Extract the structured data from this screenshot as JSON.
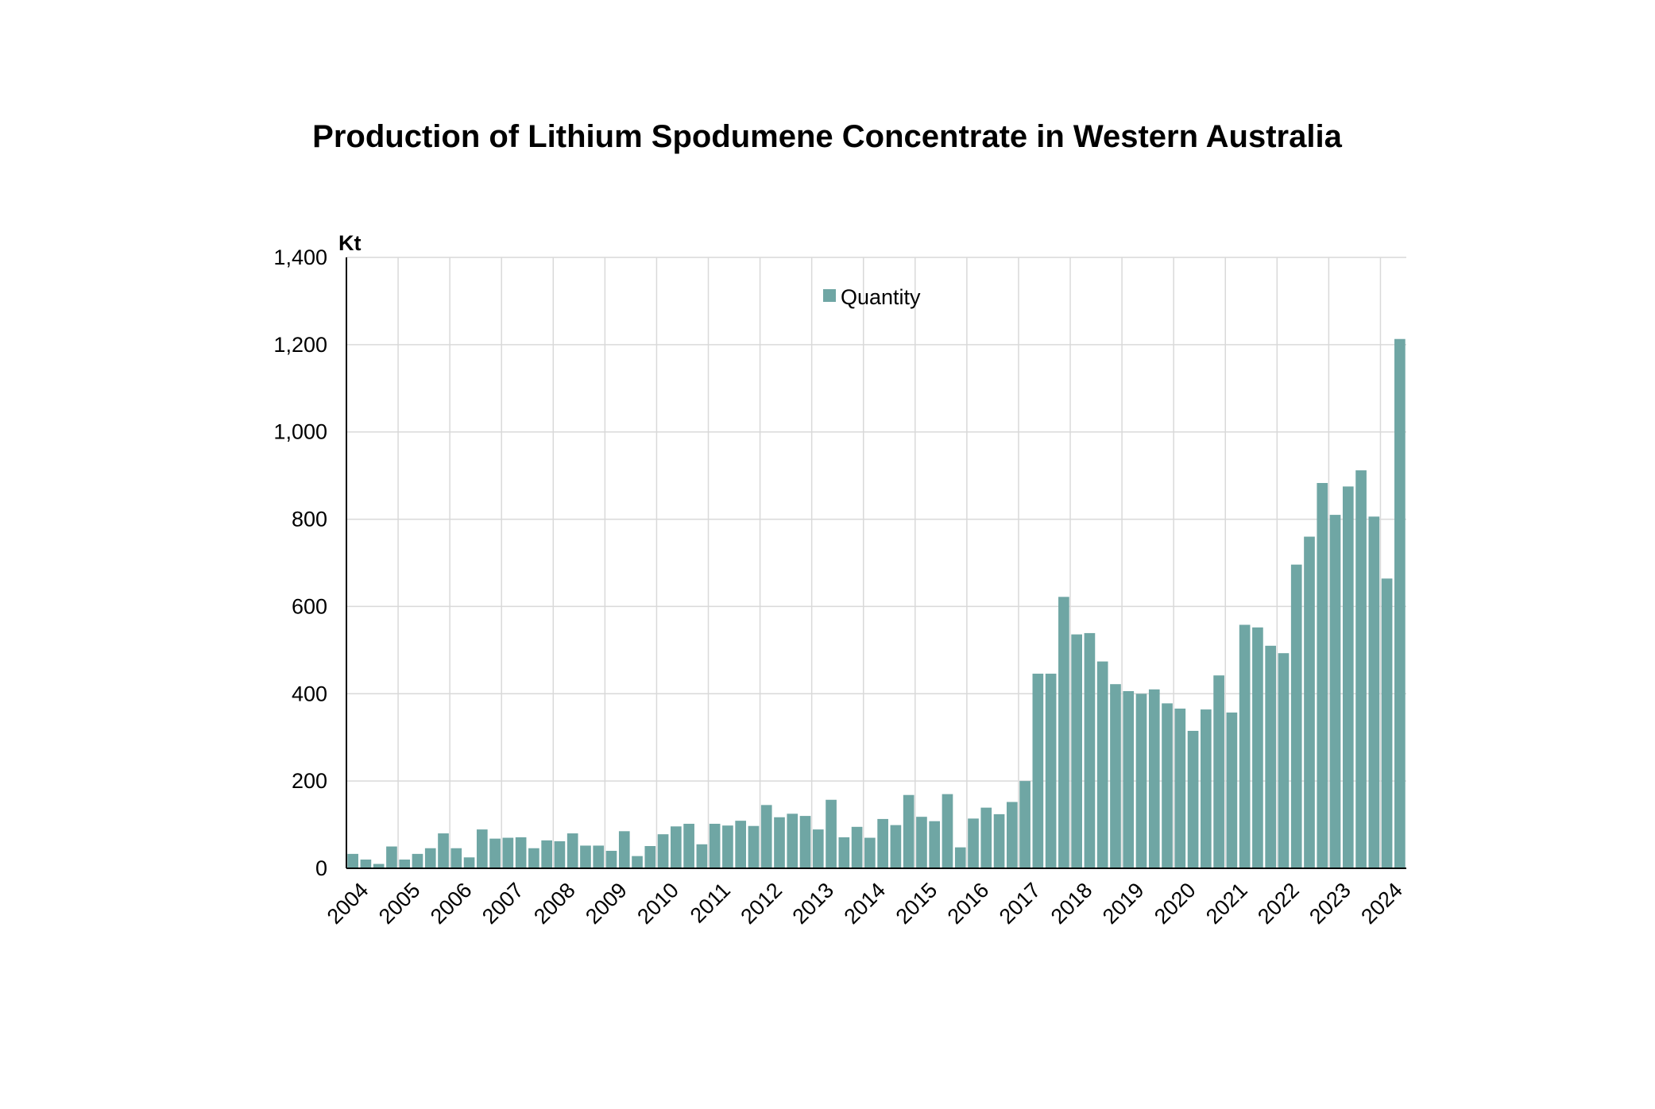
{
  "chart_data": {
    "type": "bar",
    "title": "Production of Lithium Spodumene Concentrate in Western Australia",
    "unit_label": "Kt",
    "ylim": [
      0,
      1400
    ],
    "y_ticks": [
      0,
      200,
      400,
      600,
      800,
      1000,
      1200,
      1400
    ],
    "y_tick_labels": [
      "0",
      "200",
      "400",
      "600",
      "800",
      "1,000",
      "1,200",
      "1,400"
    ],
    "x_tick_labels": [
      "2004",
      "2005",
      "2006",
      "2007",
      "2008",
      "2009",
      "2010",
      "2011",
      "2012",
      "2013",
      "2014",
      "2015",
      "2016",
      "2017",
      "2018",
      "2019",
      "2020",
      "2021",
      "2022",
      "2023",
      "2024"
    ],
    "grid": true,
    "legend_position": "top-center",
    "color": "#6fa6a4",
    "series": [
      {
        "name": "Quantity",
        "values": [
          33,
          20,
          10,
          50,
          20,
          33,
          46,
          80,
          46,
          25,
          89,
          68,
          70,
          71,
          46,
          64,
          62,
          80,
          52,
          52,
          40,
          85,
          28,
          51,
          78,
          96,
          102,
          55,
          102,
          98,
          109,
          97,
          145,
          117,
          125,
          120,
          89,
          157,
          71,
          95,
          70,
          113,
          99,
          168,
          118,
          108,
          170,
          48,
          114,
          139,
          124,
          152,
          200,
          446,
          446,
          622,
          536,
          539,
          474,
          422,
          406,
          400,
          410,
          378,
          366,
          315,
          364,
          442,
          357,
          558,
          552,
          510,
          493,
          696,
          760,
          883,
          810,
          875,
          912,
          806,
          664,
          1213
        ]
      }
    ]
  }
}
